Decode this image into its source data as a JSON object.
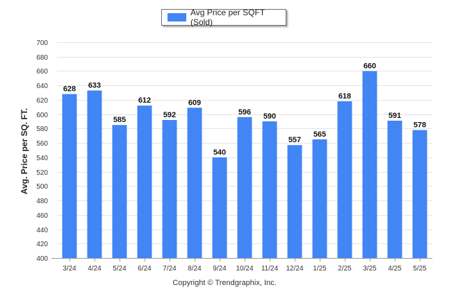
{
  "legend": {
    "label": "Avg Price per SQFT (Sold)",
    "color": "#4285f4"
  },
  "footer": {
    "text": "Copyright © Trendgraphix, Inc."
  },
  "chart_data": {
    "type": "bar",
    "title": "",
    "xlabel": "",
    "ylabel": "Avg. Price per SQ. FT.",
    "categories": [
      "3/24",
      "4/24",
      "5/24",
      "6/24",
      "7/24",
      "8/24",
      "9/24",
      "10/24",
      "11/24",
      "12/24",
      "1/25",
      "2/25",
      "3/25",
      "4/25",
      "5/25"
    ],
    "series": [
      {
        "name": "Avg Price per SQFT (Sold)",
        "values": [
          628,
          633,
          585,
          612,
          592,
          609,
          540,
          596,
          590,
          557,
          565,
          618,
          660,
          591,
          578
        ]
      }
    ],
    "ylim": [
      400,
      700
    ],
    "yticks": [
      400,
      420,
      440,
      460,
      480,
      500,
      520,
      540,
      560,
      580,
      600,
      620,
      640,
      660,
      680,
      700
    ],
    "grid": true,
    "legend_position": "top-center",
    "data_labels": true,
    "bar_color": "#4285f4"
  }
}
